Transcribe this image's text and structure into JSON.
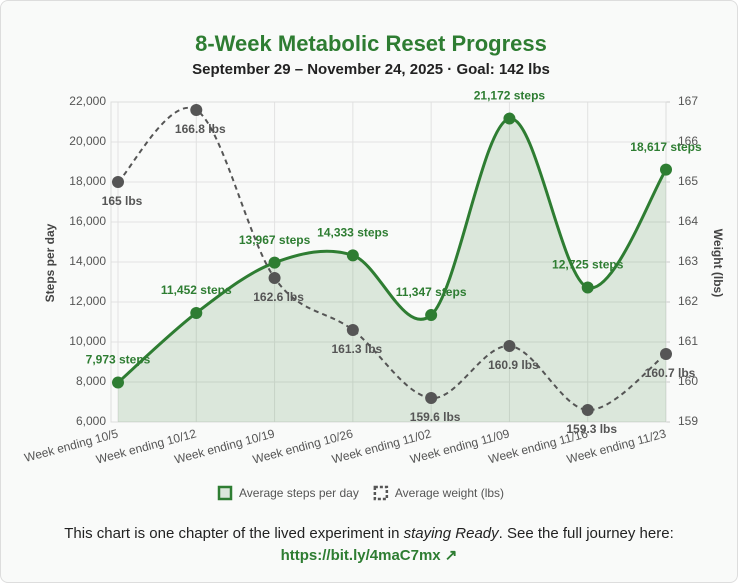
{
  "chart_data": {
    "type": "line",
    "title": "8-Week Metabolic Reset Progress",
    "subtitle": "September 29 – November 24, 2025 · Goal: 142 lbs",
    "y_label": "Steps per day",
    "y2_label": "Weight (lbs)",
    "categories": [
      "Week ending 10/5",
      "Week ending 10/12",
      "Week ending 10/19",
      "Week ending 10/26",
      "Week ending 11/02",
      "Week ending 11/09",
      "Week ending 11/16",
      "Week ending 11/23"
    ],
    "series": [
      {
        "name": "Average steps per day",
        "color": "#2e7d32",
        "values": [
          7973,
          11452,
          13967,
          14333,
          11347,
          21172,
          12725,
          18617
        ],
        "value_labels": [
          "7,973 steps",
          "11,452 steps",
          "13,967 steps",
          "14,333 steps",
          "11,347 steps",
          "21,172 steps",
          "12,725 steps",
          "18,617 steps"
        ]
      },
      {
        "name": "Average weight (lbs)",
        "color": "#555555",
        "axis": "y2",
        "values": [
          165,
          166.8,
          162.6,
          161.3,
          159.6,
          160.9,
          159.3,
          160.7
        ],
        "value_labels": [
          "165 lbs",
          "166.8 lbs",
          "162.6 lbs",
          "161.3 lbs",
          "159.6 lbs",
          "160.9 lbs",
          "159.3 lbs",
          "160.7 lbs"
        ]
      }
    ],
    "ylim": [
      6000,
      22000
    ],
    "yticks": [
      {
        "value": 6000,
        "label": "6,000"
      },
      {
        "value": 8000,
        "label": "8,000"
      },
      {
        "value": 10000,
        "label": "10,000"
      },
      {
        "value": 12000,
        "label": "12,000"
      },
      {
        "value": 14000,
        "label": "14,000"
      },
      {
        "value": 16000,
        "label": "16,000"
      },
      {
        "value": 18000,
        "label": "18,000"
      },
      {
        "value": 20000,
        "label": "20,000"
      },
      {
        "value": 22000,
        "label": "22,000"
      }
    ],
    "y2lim": [
      159,
      167
    ],
    "y2ticks": [
      159,
      160,
      161,
      162,
      163,
      164,
      165,
      166,
      167
    ],
    "grid": true,
    "legend": "bottom"
  },
  "footer": {
    "text_before": "This chart is one chapter of the lived experiment in",
    "emphasis": "staying Ready",
    "text_after": ". See the full journey here:",
    "link": "https://bit.ly/4maC7mx ↗"
  }
}
